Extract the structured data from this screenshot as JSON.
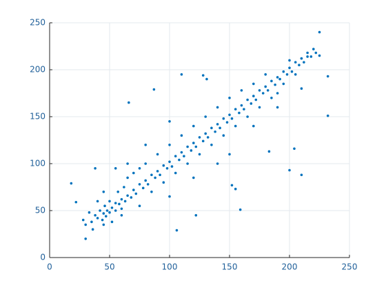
{
  "chart_data": {
    "type": "scatter",
    "color": "#0072BD",
    "xlim": [
      0,
      250
    ],
    "ylim": [
      0,
      250
    ],
    "xticks": [
      0,
      50,
      100,
      150,
      200,
      250
    ],
    "yticks": [
      0,
      50,
      100,
      150,
      200,
      250
    ],
    "grid": true,
    "x": [
      35,
      38,
      40,
      42,
      44,
      45,
      46,
      47,
      48,
      50,
      50,
      52,
      55,
      55,
      57,
      58,
      60,
      60,
      62,
      63,
      65,
      65,
      68,
      70,
      70,
      72,
      75,
      75,
      78,
      80,
      80,
      82,
      85,
      85,
      88,
      90,
      90,
      92,
      95,
      95,
      98,
      100,
      100,
      102,
      105,
      105,
      108,
      110,
      110,
      112,
      115,
      115,
      118,
      120,
      120,
      122,
      125,
      125,
      128,
      130,
      130,
      132,
      135,
      135,
      138,
      140,
      140,
      142,
      145,
      145,
      148,
      150,
      150,
      152,
      155,
      155,
      158,
      160,
      160,
      162,
      165,
      165,
      168,
      170,
      170,
      172,
      175,
      175,
      178,
      180,
      180,
      182,
      185,
      185,
      188,
      190,
      190,
      192,
      195,
      195,
      198,
      200,
      200,
      202,
      205,
      205,
      208,
      210,
      210,
      212,
      215,
      215,
      218,
      220,
      222,
      225,
      18,
      22,
      30,
      87,
      66,
      110,
      128,
      131,
      225,
      232,
      232,
      159,
      122,
      106,
      183,
      200,
      210,
      204,
      152,
      155,
      30,
      33,
      36,
      40,
      45,
      52,
      28,
      60,
      75,
      65,
      55,
      100,
      120,
      150,
      140,
      170,
      190,
      100,
      210,
      80,
      45,
      38
    ],
    "values": [
      38,
      45,
      42,
      50,
      40,
      47,
      55,
      44,
      50,
      48,
      60,
      53,
      50,
      58,
      70,
      57,
      62,
      52,
      75,
      60,
      66,
      85,
      64,
      72,
      90,
      68,
      78,
      95,
      74,
      82,
      100,
      78,
      88,
      70,
      85,
      92,
      110,
      88,
      98,
      80,
      95,
      102,
      120,
      97,
      108,
      90,
      104,
      112,
      130,
      108,
      118,
      100,
      114,
      122,
      140,
      118,
      128,
      110,
      124,
      132,
      150,
      128,
      138,
      120,
      134,
      142,
      160,
      138,
      148,
      130,
      144,
      152,
      170,
      148,
      158,
      140,
      154,
      162,
      178,
      158,
      168,
      150,
      164,
      172,
      185,
      168,
      178,
      160,
      175,
      182,
      195,
      178,
      188,
      170,
      184,
      192,
      175,
      190,
      198,
      185,
      195,
      202,
      210,
      198,
      208,
      195,
      205,
      212,
      212,
      208,
      218,
      214,
      214,
      222,
      218,
      215,
      79,
      59,
      20,
      179,
      165,
      195,
      194,
      190,
      240,
      151,
      193,
      51,
      45,
      29,
      113,
      93,
      88,
      116,
      77,
      73,
      35,
      48,
      30,
      60,
      35,
      38,
      40,
      45,
      55,
      100,
      95,
      65,
      85,
      110,
      100,
      140,
      160,
      145,
      180,
      120,
      70,
      95
    ]
  }
}
